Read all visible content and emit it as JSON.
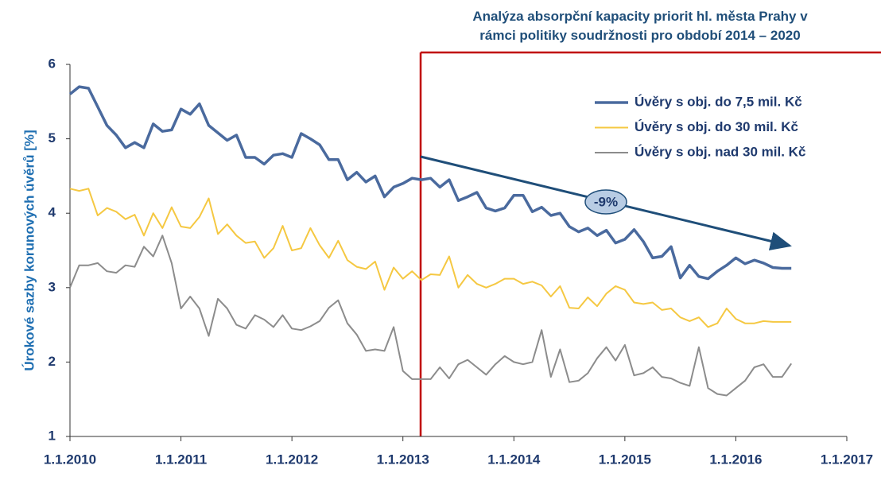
{
  "chart_data": {
    "type": "line",
    "title": "Analýza absorpční kapacity priorit hl. města Prahy v rámci politiky soudržnosti pro období 2014 – 2020",
    "y_label": "Úrokové sazby korunových úvěrů [%]",
    "annotation": "-9%",
    "legend": "top-right",
    "x": [
      "2010-01",
      "2010-02",
      "2010-03",
      "2010-04",
      "2010-05",
      "2010-06",
      "2010-07",
      "2010-08",
      "2010-09",
      "2010-10",
      "2010-11",
      "2010-12",
      "2011-01",
      "2011-02",
      "2011-03",
      "2011-04",
      "2011-05",
      "2011-06",
      "2011-07",
      "2011-08",
      "2011-09",
      "2011-10",
      "2011-11",
      "2011-12",
      "2012-01",
      "2012-02",
      "2012-03",
      "2012-04",
      "2012-05",
      "2012-06",
      "2012-07",
      "2012-08",
      "2012-09",
      "2012-10",
      "2012-11",
      "2012-12",
      "2013-01",
      "2013-02",
      "2013-03",
      "2013-04",
      "2013-05",
      "2013-06",
      "2013-07",
      "2013-08",
      "2013-09",
      "2013-10",
      "2013-11",
      "2013-12",
      "2014-01",
      "2014-02",
      "2014-03",
      "2014-04",
      "2014-05",
      "2014-06",
      "2014-07",
      "2014-08",
      "2014-09",
      "2014-10",
      "2014-11",
      "2014-12",
      "2015-01",
      "2015-02",
      "2015-03",
      "2015-04",
      "2015-05",
      "2015-06",
      "2015-07",
      "2015-08",
      "2015-09",
      "2015-10",
      "2015-11",
      "2015-12",
      "2016-01",
      "2016-02",
      "2016-03",
      "2016-04",
      "2016-05",
      "2016-06",
      "2016-07"
    ],
    "series": [
      {
        "name": "Úvěry s obj. do 7,5 mil. Kč",
        "color": "#4a6a9e",
        "width": 3.5,
        "values": [
          5.6,
          5.7,
          5.68,
          5.43,
          5.18,
          5.05,
          4.88,
          4.95,
          4.88,
          5.2,
          5.1,
          5.12,
          5.4,
          5.33,
          5.47,
          5.18,
          5.08,
          4.98,
          5.05,
          4.75,
          4.75,
          4.66,
          4.78,
          4.8,
          4.75,
          5.07,
          5.0,
          4.92,
          4.72,
          4.72,
          4.45,
          4.55,
          4.42,
          4.5,
          4.22,
          4.35,
          4.4,
          4.47,
          4.45,
          4.47,
          4.35,
          4.45,
          4.17,
          4.22,
          4.28,
          4.07,
          4.03,
          4.07,
          4.24,
          4.24,
          4.02,
          4.08,
          3.97,
          4.0,
          3.82,
          3.75,
          3.8,
          3.7,
          3.77,
          3.6,
          3.65,
          3.78,
          3.62,
          3.4,
          3.42,
          3.55,
          3.13,
          3.3,
          3.15,
          3.12,
          3.22,
          3.3,
          3.4,
          3.32,
          3.37,
          3.33,
          3.27,
          3.26,
          3.26
        ]
      },
      {
        "name": "Úvěry s obj. do 30 mil. Kč",
        "color": "#f5c842",
        "width": 2,
        "values": [
          4.33,
          4.3,
          4.33,
          3.97,
          4.07,
          4.02,
          3.92,
          3.98,
          3.7,
          4.0,
          3.8,
          4.08,
          3.82,
          3.8,
          3.95,
          4.2,
          3.72,
          3.85,
          3.7,
          3.6,
          3.62,
          3.4,
          3.53,
          3.83,
          3.5,
          3.53,
          3.8,
          3.57,
          3.4,
          3.63,
          3.37,
          3.28,
          3.25,
          3.35,
          2.97,
          3.27,
          3.12,
          3.22,
          3.1,
          3.18,
          3.17,
          3.42,
          3.0,
          3.17,
          3.05,
          3.0,
          3.05,
          3.12,
          3.12,
          3.05,
          3.08,
          3.03,
          2.88,
          3.02,
          2.73,
          2.72,
          2.87,
          2.75,
          2.92,
          3.02,
          2.97,
          2.8,
          2.78,
          2.8,
          2.7,
          2.72,
          2.6,
          2.55,
          2.6,
          2.47,
          2.52,
          2.72,
          2.58,
          2.52,
          2.52,
          2.55,
          2.54,
          2.54,
          2.54
        ]
      },
      {
        "name": "Úvěry s obj. nad 30 mil. Kč",
        "color": "#8c8c8c",
        "width": 2,
        "values": [
          3.0,
          3.3,
          3.3,
          3.33,
          3.22,
          3.2,
          3.3,
          3.28,
          3.55,
          3.42,
          3.7,
          3.33,
          2.72,
          2.88,
          2.72,
          2.35,
          2.85,
          2.72,
          2.5,
          2.45,
          2.63,
          2.57,
          2.47,
          2.63,
          2.45,
          2.43,
          2.48,
          2.55,
          2.73,
          2.83,
          2.52,
          2.37,
          2.15,
          2.17,
          2.15,
          2.47,
          1.88,
          1.77,
          1.77,
          1.77,
          1.93,
          1.78,
          1.97,
          2.03,
          1.93,
          1.83,
          1.97,
          2.08,
          2.0,
          1.97,
          2.0,
          2.43,
          1.8,
          2.17,
          1.73,
          1.75,
          1.85,
          2.05,
          2.2,
          2.02,
          2.23,
          1.82,
          1.85,
          1.93,
          1.8,
          1.78,
          1.72,
          1.68,
          2.2,
          1.65,
          1.57,
          1.55,
          1.65,
          1.75,
          1.93,
          1.97,
          1.8,
          1.8,
          1.98
        ]
      }
    ],
    "xlim": [
      "2010-01",
      "2017-01"
    ],
    "xticks": [
      {
        "value": "2010-01",
        "label": "1.1.2010"
      },
      {
        "value": "2011-01",
        "label": "1.1.2011"
      },
      {
        "value": "2012-01",
        "label": "1.1.2012"
      },
      {
        "value": "2013-01",
        "label": "1.1.2013"
      },
      {
        "value": "2014-01",
        "label": "1.1.2014"
      },
      {
        "value": "2015-01",
        "label": "1.1.2015"
      },
      {
        "value": "2016-01",
        "label": "1.1.2016"
      },
      {
        "value": "2017-01",
        "label": "1.1.2017"
      }
    ],
    "ylim": [
      1,
      6
    ],
    "yticks": [
      1,
      2,
      3,
      4,
      5,
      6
    ]
  }
}
